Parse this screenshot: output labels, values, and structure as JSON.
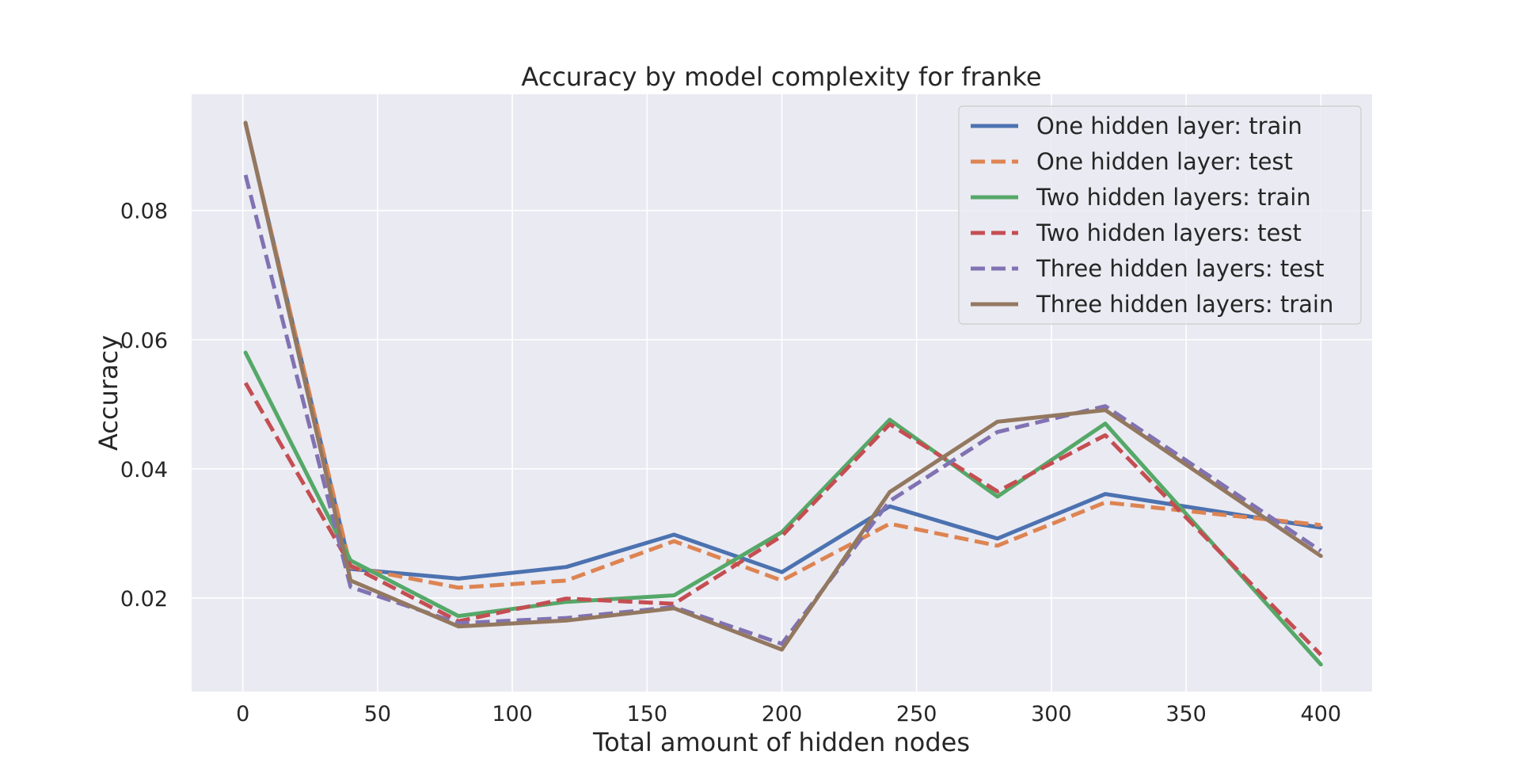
{
  "chart_data": {
    "type": "line",
    "title": "Accuracy by model complexity for franke",
    "xlabel": "Total amount of hidden nodes",
    "ylabel": "Accuracy",
    "xlim": [
      -19,
      419
    ],
    "ylim": [
      0.0055,
      0.098
    ],
    "xticks": [
      0,
      50,
      100,
      150,
      200,
      250,
      300,
      350,
      400
    ],
    "xtick_labels": [
      "0",
      "50",
      "100",
      "150",
      "200",
      "250",
      "300",
      "350",
      "400"
    ],
    "yticks": [
      0.02,
      0.04,
      0.06,
      0.08
    ],
    "ytick_labels": [
      "0.02",
      "0.04",
      "0.06",
      "0.08"
    ],
    "grid": true,
    "legend_position": "top-right",
    "x": [
      1,
      40,
      80,
      120,
      160,
      200,
      240,
      280,
      320,
      400
    ],
    "series": [
      {
        "name": "One hidden layer: train",
        "color": "#4c72b0",
        "dash": "solid",
        "values": [
          0.0935,
          0.0245,
          0.023,
          0.0248,
          0.0298,
          0.024,
          0.0342,
          0.0292,
          0.0361,
          0.0309
        ]
      },
      {
        "name": "One hidden layer: test",
        "color": "#dd8452",
        "dash": "dashed",
        "values": [
          0.0935,
          0.0248,
          0.0216,
          0.0227,
          0.0288,
          0.0227,
          0.0315,
          0.0281,
          0.0348,
          0.0313
        ]
      },
      {
        "name": "Two hidden layers: train",
        "color": "#55a868",
        "dash": "solid",
        "values": [
          0.058,
          0.0258,
          0.0172,
          0.0194,
          0.0204,
          0.0302,
          0.0476,
          0.0357,
          0.047,
          0.0097
        ]
      },
      {
        "name": "Two hidden layers: test",
        "color": "#c44e52",
        "dash": "dashed",
        "values": [
          0.0533,
          0.025,
          0.0164,
          0.0199,
          0.0191,
          0.0296,
          0.0469,
          0.0365,
          0.0452,
          0.0112
        ]
      },
      {
        "name": "Three hidden layers: test",
        "color": "#8172b3",
        "dash": "dashed",
        "values": [
          0.0855,
          0.0217,
          0.0161,
          0.0169,
          0.0186,
          0.0129,
          0.035,
          0.0457,
          0.0497,
          0.0273
        ]
      },
      {
        "name": "Three hidden layers: train",
        "color": "#937860",
        "dash": "solid",
        "values": [
          0.0936,
          0.0227,
          0.0156,
          0.0165,
          0.0184,
          0.012,
          0.0364,
          0.0473,
          0.0491,
          0.0265
        ]
      }
    ]
  }
}
